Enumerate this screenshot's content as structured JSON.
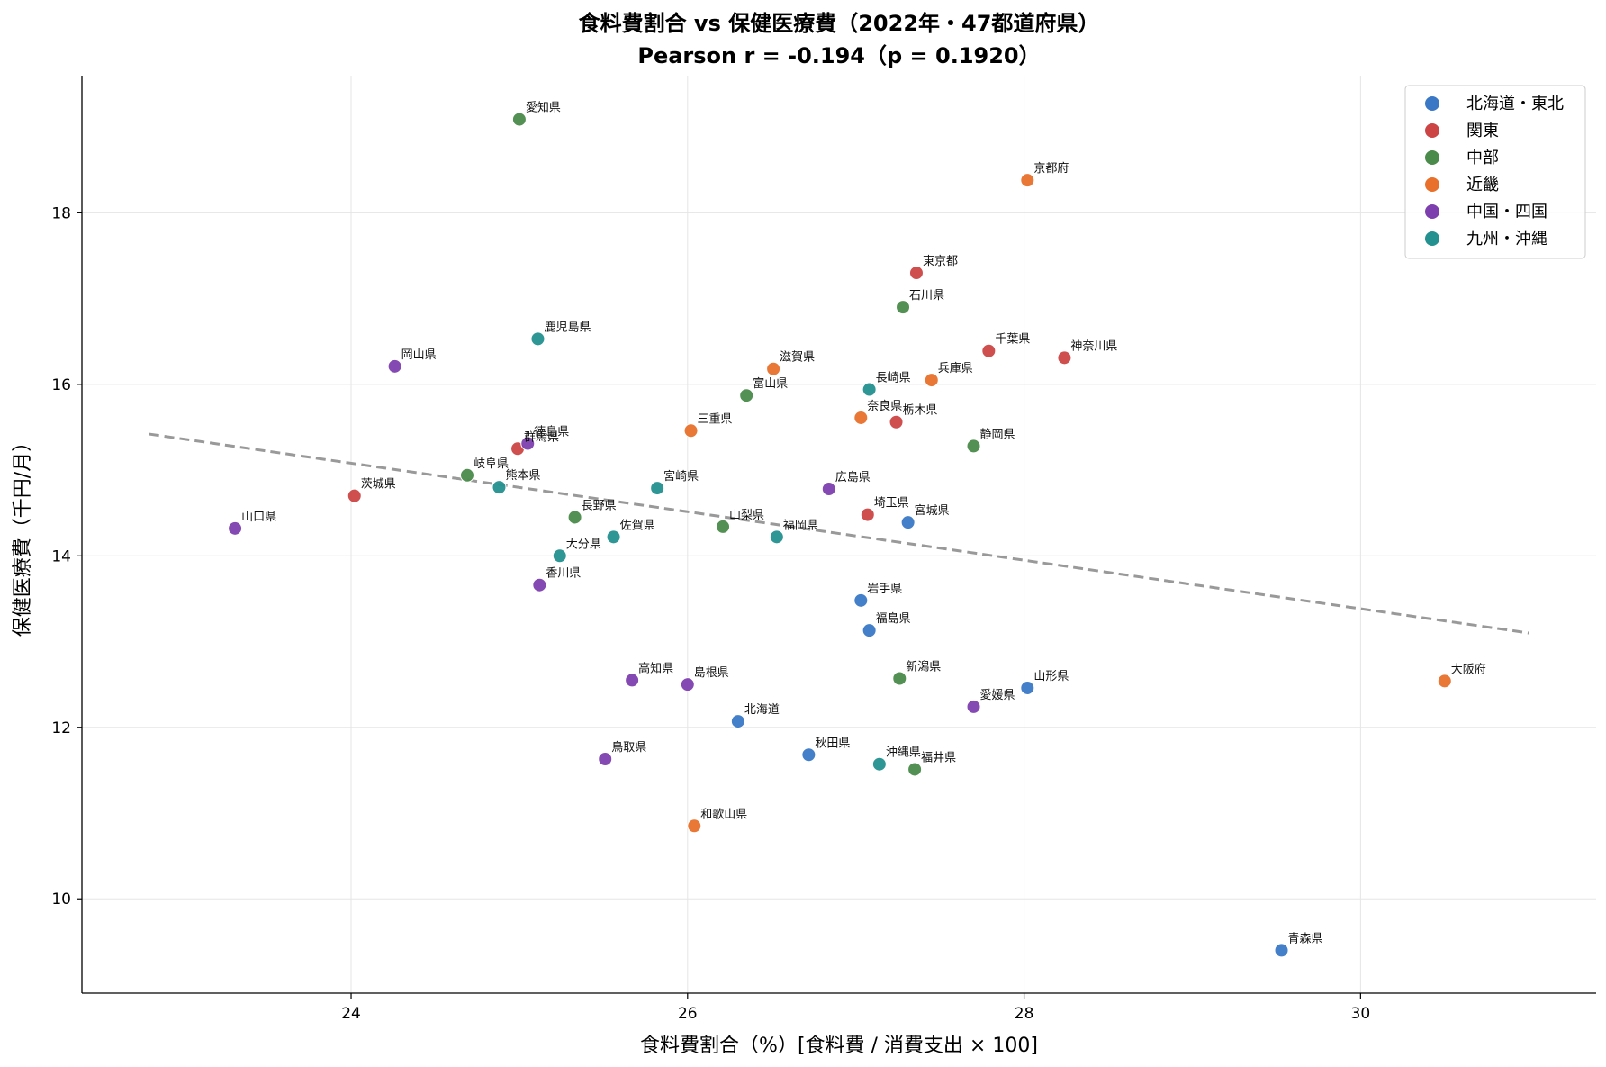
{
  "chart_data": {
    "type": "scatter",
    "title": "食料費割合 vs 保健医療費（2022年・47都道府県）",
    "subtitle": "Pearson r = -0.194（p = 0.1920）",
    "xlabel": "食料費割合（%）[食料費 / 消費支出 × 100]",
    "ylabel": "保健医療費（千円/月）",
    "xlim": [
      22.4,
      31.4
    ],
    "ylim": [
      8.9,
      19.6
    ],
    "xticks": [
      24,
      26,
      28,
      30
    ],
    "yticks": [
      10,
      12,
      14,
      16,
      18
    ],
    "grid": true,
    "legend_position": "top-right",
    "trendline": {
      "style": "dashed",
      "color": "#999999",
      "x": [
        22.8,
        31.0
      ],
      "y": [
        15.42,
        13.1
      ]
    },
    "series": [
      {
        "name": "北海道・東北",
        "color": "#3a78c6",
        "points": [
          {
            "label": "北海道",
            "x": 26.3,
            "y": 12.07
          },
          {
            "label": "青森県",
            "x": 29.53,
            "y": 9.4
          },
          {
            "label": "岩手県",
            "x": 27.03,
            "y": 13.48
          },
          {
            "label": "宮城県",
            "x": 27.31,
            "y": 14.39
          },
          {
            "label": "秋田県",
            "x": 26.72,
            "y": 11.68
          },
          {
            "label": "山形県",
            "x": 28.02,
            "y": 12.46
          },
          {
            "label": "福島県",
            "x": 27.08,
            "y": 13.13
          }
        ]
      },
      {
        "name": "関東",
        "color": "#cc4444",
        "points": [
          {
            "label": "茨城県",
            "x": 24.02,
            "y": 14.7
          },
          {
            "label": "栃木県",
            "x": 27.24,
            "y": 15.56
          },
          {
            "label": "群馬県",
            "x": 24.99,
            "y": 15.25
          },
          {
            "label": "埼玉県",
            "x": 27.07,
            "y": 14.48
          },
          {
            "label": "千葉県",
            "x": 27.79,
            "y": 16.39
          },
          {
            "label": "東京都",
            "x": 27.36,
            "y": 17.3
          },
          {
            "label": "神奈川県",
            "x": 28.24,
            "y": 16.31
          }
        ]
      },
      {
        "name": "中部",
        "color": "#4a8a4a",
        "points": [
          {
            "label": "新潟県",
            "x": 27.26,
            "y": 12.57
          },
          {
            "label": "富山県",
            "x": 26.35,
            "y": 15.87
          },
          {
            "label": "石川県",
            "x": 27.28,
            "y": 16.9
          },
          {
            "label": "福井県",
            "x": 27.35,
            "y": 11.51
          },
          {
            "label": "山梨県",
            "x": 26.21,
            "y": 14.34
          },
          {
            "label": "長野県",
            "x": 25.33,
            "y": 14.45
          },
          {
            "label": "岐阜県",
            "x": 24.69,
            "y": 14.94
          },
          {
            "label": "静岡県",
            "x": 27.7,
            "y": 15.28
          },
          {
            "label": "愛知県",
            "x": 25.0,
            "y": 19.09
          }
        ]
      },
      {
        "name": "近畿",
        "color": "#e8702a",
        "points": [
          {
            "label": "三重県",
            "x": 26.02,
            "y": 15.46
          },
          {
            "label": "滋賀県",
            "x": 26.51,
            "y": 16.18
          },
          {
            "label": "京都府",
            "x": 28.02,
            "y": 18.38
          },
          {
            "label": "大阪府",
            "x": 30.5,
            "y": 12.54
          },
          {
            "label": "兵庫県",
            "x": 27.45,
            "y": 16.05
          },
          {
            "label": "奈良県",
            "x": 27.03,
            "y": 15.61
          },
          {
            "label": "和歌山県",
            "x": 26.04,
            "y": 10.85
          }
        ]
      },
      {
        "name": "中国・四国",
        "color": "#7d3fae",
        "points": [
          {
            "label": "鳥取県",
            "x": 25.51,
            "y": 11.63
          },
          {
            "label": "島根県",
            "x": 26.0,
            "y": 12.5
          },
          {
            "label": "岡山県",
            "x": 24.26,
            "y": 16.21
          },
          {
            "label": "広島県",
            "x": 26.84,
            "y": 14.78
          },
          {
            "label": "山口県",
            "x": 23.31,
            "y": 14.32
          },
          {
            "label": "徳島県",
            "x": 25.05,
            "y": 15.31
          },
          {
            "label": "香川県",
            "x": 25.12,
            "y": 13.66
          },
          {
            "label": "愛媛県",
            "x": 27.7,
            "y": 12.24
          },
          {
            "label": "高知県",
            "x": 25.67,
            "y": 12.55
          }
        ]
      },
      {
        "name": "九州・沖縄",
        "color": "#23918f",
        "points": [
          {
            "label": "福岡県",
            "x": 26.53,
            "y": 14.22
          },
          {
            "label": "佐賀県",
            "x": 25.56,
            "y": 14.22
          },
          {
            "label": "長崎県",
            "x": 27.08,
            "y": 15.94
          },
          {
            "label": "熊本県",
            "x": 24.88,
            "y": 14.8
          },
          {
            "label": "大分県",
            "x": 25.24,
            "y": 14.0
          },
          {
            "label": "宮崎県",
            "x": 25.82,
            "y": 14.79
          },
          {
            "label": "鹿児島県",
            "x": 25.11,
            "y": 16.53
          },
          {
            "label": "沖縄県",
            "x": 27.14,
            "y": 11.57
          }
        ]
      }
    ]
  }
}
